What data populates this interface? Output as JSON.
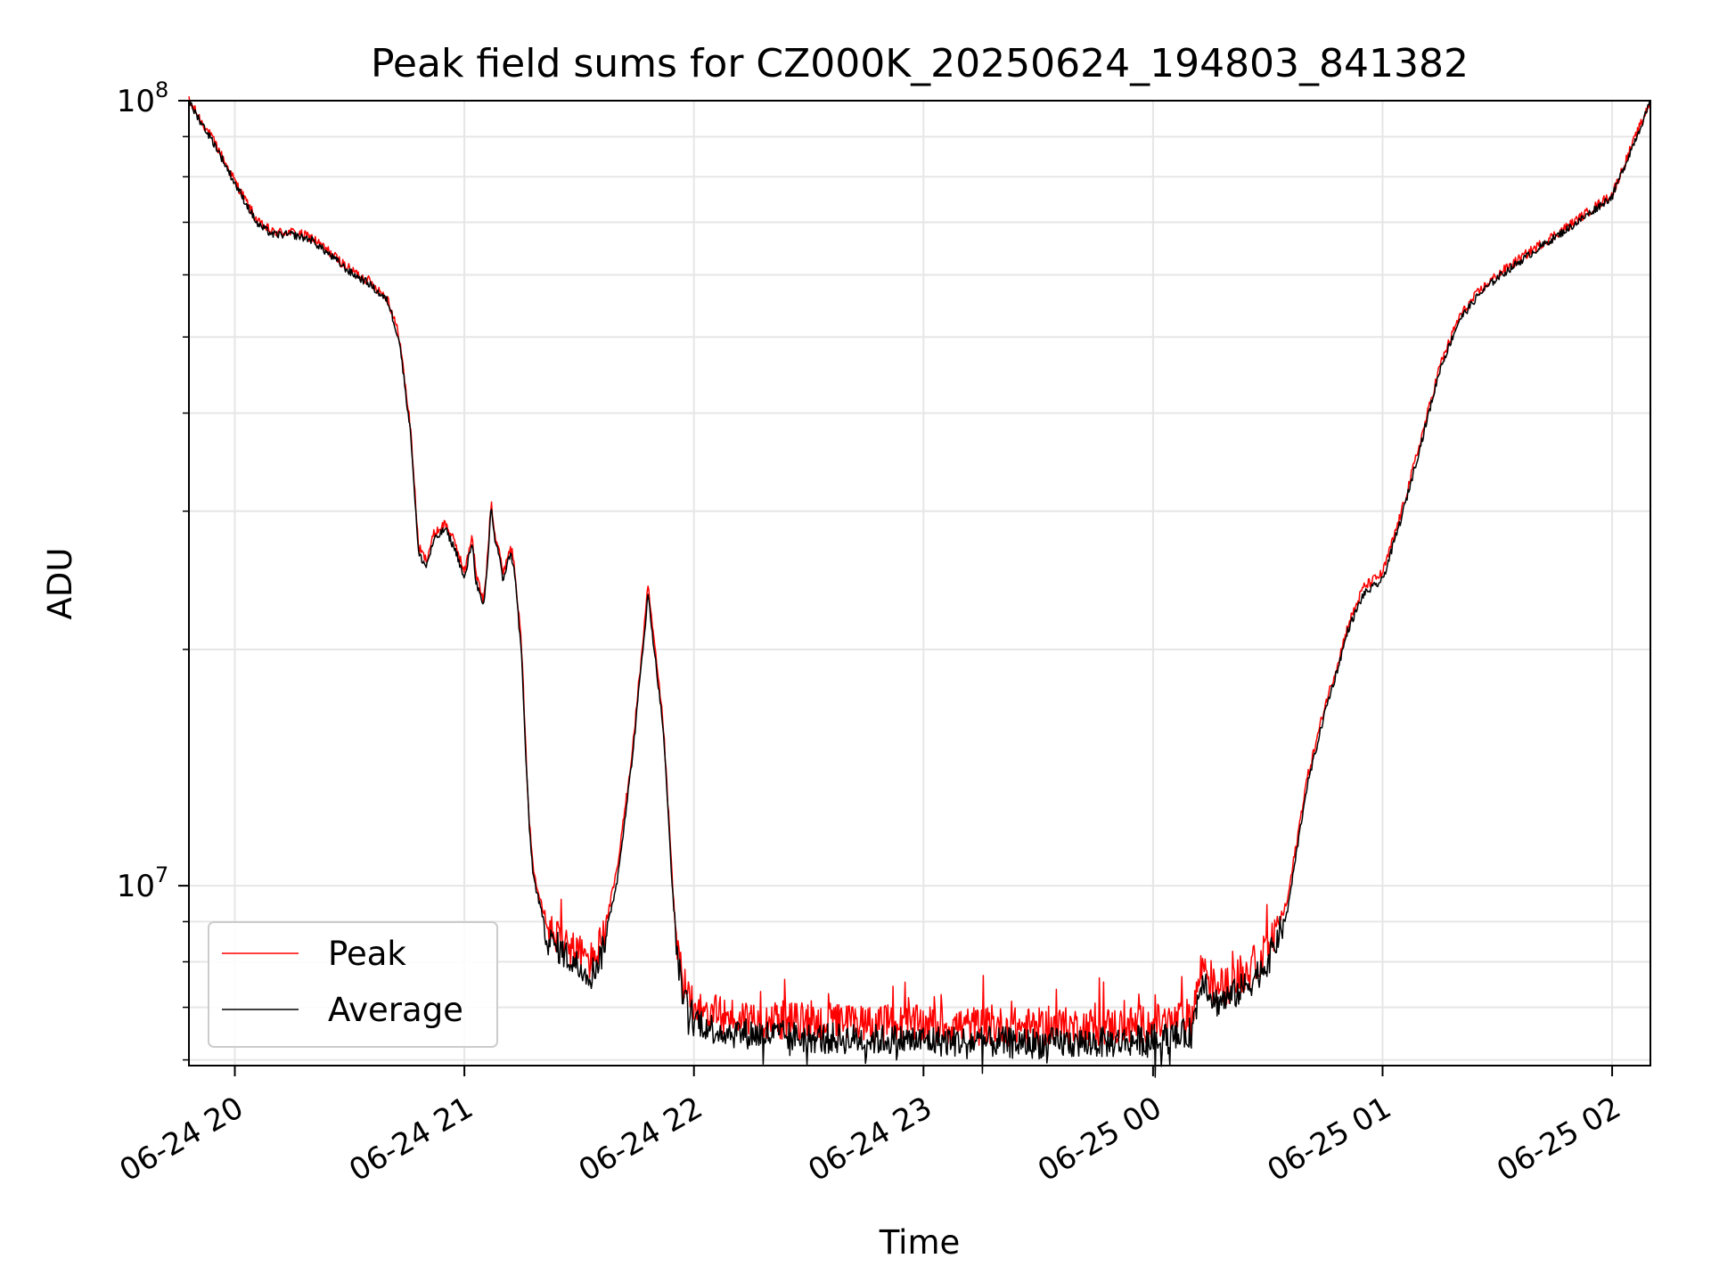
{
  "chart_data": {
    "type": "line",
    "title": "Peak field sums for CZ000K_20250624_194803_841382",
    "xlabel": "Time",
    "ylabel": "ADU",
    "yscale": "log",
    "ylim": [
      5900000.0,
      100000000.0
    ],
    "xlim": [
      "2025-06-24 19:48",
      "2025-06-25 02:10"
    ],
    "grid": true,
    "legend_position": "lower-left",
    "x_ticks": [
      {
        "value": "2025-06-24 20:00",
        "label": "06-24 20"
      },
      {
        "value": "2025-06-24 21:00",
        "label": "06-24 21"
      },
      {
        "value": "2025-06-24 22:00",
        "label": "06-24 22"
      },
      {
        "value": "2025-06-24 23:00",
        "label": "06-24 23"
      },
      {
        "value": "2025-06-25 00:00",
        "label": "06-25 00"
      },
      {
        "value": "2025-06-25 01:00",
        "label": "06-25 01"
      },
      {
        "value": "2025-06-25 02:00",
        "label": "06-25 02"
      }
    ],
    "y_ticks": [
      {
        "value": 10000000,
        "base": "10",
        "exp": "7"
      },
      {
        "value": 100000000,
        "base": "10",
        "exp": "8"
      }
    ],
    "y_minor_ticks": [
      6000000,
      7000000,
      8000000,
      9000000,
      20000000,
      30000000,
      40000000,
      50000000,
      60000000,
      70000000,
      80000000,
      90000000
    ],
    "series": [
      {
        "name": "Peak",
        "color": "#ff0000",
        "noise": 0.05,
        "x": [
          "2025-06-24 19:48",
          "2025-06-24 19:55",
          "2025-06-24 20:00",
          "2025-06-24 20:06",
          "2025-06-24 20:10",
          "2025-06-24 20:15",
          "2025-06-24 20:20",
          "2025-06-24 20:25",
          "2025-06-24 20:30",
          "2025-06-24 20:35",
          "2025-06-24 20:40",
          "2025-06-24 20:43",
          "2025-06-24 20:46",
          "2025-06-24 20:48",
          "2025-06-24 20:50",
          "2025-06-24 20:52",
          "2025-06-24 20:55",
          "2025-06-24 20:58",
          "2025-06-24 21:00",
          "2025-06-24 21:02",
          "2025-06-24 21:03",
          "2025-06-24 21:05",
          "2025-06-24 21:06",
          "2025-06-24 21:07",
          "2025-06-24 21:08",
          "2025-06-24 21:09",
          "2025-06-24 21:10",
          "2025-06-24 21:12",
          "2025-06-24 21:13",
          "2025-06-24 21:15",
          "2025-06-24 21:16",
          "2025-06-24 21:17",
          "2025-06-24 21:18",
          "2025-06-24 21:20",
          "2025-06-24 21:22",
          "2025-06-24 21:25",
          "2025-06-24 21:27",
          "2025-06-24 21:30",
          "2025-06-24 21:33",
          "2025-06-24 21:36",
          "2025-06-24 21:40",
          "2025-06-24 21:44",
          "2025-06-24 21:48",
          "2025-06-24 21:52",
          "2025-06-24 21:55",
          "2025-06-24 21:57",
          "2025-06-24 22:00",
          "2025-06-24 22:02",
          "2025-06-24 22:04",
          "2025-06-24 22:06",
          "2025-06-24 22:10",
          "2025-06-24 22:15",
          "2025-06-24 22:30",
          "2025-06-24 23:00",
          "2025-06-24 23:30",
          "2025-06-24 23:50",
          "2025-06-25 00:05",
          "2025-06-25 00:10",
          "2025-06-25 00:13",
          "2025-06-25 00:16",
          "2025-06-25 00:20",
          "2025-06-25 00:25",
          "2025-06-25 00:30",
          "2025-06-25 00:35",
          "2025-06-25 00:40",
          "2025-06-25 00:45",
          "2025-06-25 00:48",
          "2025-06-25 00:51",
          "2025-06-25 00:55",
          "2025-06-25 01:00",
          "2025-06-25 01:05",
          "2025-06-25 01:10",
          "2025-06-25 01:15",
          "2025-06-25 01:20",
          "2025-06-25 01:25",
          "2025-06-25 01:30",
          "2025-06-25 01:40",
          "2025-06-25 01:50",
          "2025-06-25 02:00",
          "2025-06-25 02:10"
        ],
        "values": [
          100000000,
          88000000,
          79000000,
          70000000,
          68000000,
          68000000,
          67000000,
          64000000,
          61000000,
          59000000,
          56000000,
          50000000,
          38000000,
          27000000,
          26000000,
          28000000,
          29000000,
          27000000,
          25000000,
          28000000,
          25000000,
          23000000,
          26000000,
          31000000,
          28000000,
          27000000,
          25000000,
          27000000,
          26000000,
          20000000,
          15000000,
          12000000,
          10500000,
          9600000,
          8800000,
          8600000,
          8400000,
          8200000,
          8000000,
          8500000,
          10500000,
          15000000,
          24000000,
          16000000,
          9000000,
          7500000,
          7100000,
          7000000,
          6900000,
          6850000,
          6800000,
          6780000,
          6700000,
          6650000,
          6600000,
          6620000,
          6700000,
          6800000,
          8000000,
          7400000,
          7500000,
          7800000,
          8300000,
          9500000,
          13500000,
          17000000,
          19000000,
          21500000,
          24000000,
          25000000,
          30000000,
          37000000,
          46000000,
          53000000,
          57000000,
          60000000,
          65000000,
          70000000,
          76000000,
          100000000
        ]
      },
      {
        "name": "Average",
        "color": "#000000",
        "noise": 0.04,
        "x": [
          "2025-06-24 19:48",
          "2025-06-24 19:55",
          "2025-06-24 20:00",
          "2025-06-24 20:06",
          "2025-06-24 20:10",
          "2025-06-24 20:15",
          "2025-06-24 20:20",
          "2025-06-24 20:25",
          "2025-06-24 20:30",
          "2025-06-24 20:35",
          "2025-06-24 20:40",
          "2025-06-24 20:43",
          "2025-06-24 20:46",
          "2025-06-24 20:48",
          "2025-06-24 20:50",
          "2025-06-24 20:52",
          "2025-06-24 20:55",
          "2025-06-24 20:58",
          "2025-06-24 21:00",
          "2025-06-24 21:02",
          "2025-06-24 21:03",
          "2025-06-24 21:05",
          "2025-06-24 21:06",
          "2025-06-24 21:07",
          "2025-06-24 21:08",
          "2025-06-24 21:09",
          "2025-06-24 21:10",
          "2025-06-24 21:12",
          "2025-06-24 21:13",
          "2025-06-24 21:15",
          "2025-06-24 21:16",
          "2025-06-24 21:17",
          "2025-06-24 21:18",
          "2025-06-24 21:20",
          "2025-06-24 21:22",
          "2025-06-24 21:25",
          "2025-06-24 21:27",
          "2025-06-24 21:30",
          "2025-06-24 21:33",
          "2025-06-24 21:36",
          "2025-06-24 21:40",
          "2025-06-24 21:44",
          "2025-06-24 21:48",
          "2025-06-24 21:52",
          "2025-06-24 21:55",
          "2025-06-24 21:57",
          "2025-06-24 22:00",
          "2025-06-24 22:02",
          "2025-06-24 22:04",
          "2025-06-24 22:06",
          "2025-06-24 22:10",
          "2025-06-24 22:15",
          "2025-06-24 22:30",
          "2025-06-24 23:00",
          "2025-06-24 23:30",
          "2025-06-24 23:50",
          "2025-06-25 00:05",
          "2025-06-25 00:10",
          "2025-06-25 00:13",
          "2025-06-25 00:16",
          "2025-06-25 00:20",
          "2025-06-25 00:25",
          "2025-06-25 00:30",
          "2025-06-25 00:35",
          "2025-06-25 00:40",
          "2025-06-25 00:45",
          "2025-06-25 00:48",
          "2025-06-25 00:51",
          "2025-06-25 00:55",
          "2025-06-25 01:00",
          "2025-06-25 01:05",
          "2025-06-25 01:10",
          "2025-06-25 01:15",
          "2025-06-25 01:20",
          "2025-06-25 01:25",
          "2025-06-25 01:30",
          "2025-06-25 01:40",
          "2025-06-25 01:50",
          "2025-06-25 02:00",
          "2025-06-25 02:10"
        ],
        "values": [
          99500000,
          87500000,
          78500000,
          69500000,
          67500000,
          67500000,
          66500000,
          63500000,
          60500000,
          58500000,
          55500000,
          49500000,
          37500000,
          26500000,
          25500000,
          27500000,
          28500000,
          26500000,
          24500000,
          27500000,
          24500000,
          22500000,
          25500000,
          30500000,
          27500000,
          26500000,
          24500000,
          26500000,
          25500000,
          19500000,
          14800000,
          11800000,
          10300000,
          9300000,
          8500000,
          8300000,
          8100000,
          7900000,
          7700000,
          8200000,
          10200000,
          14700000,
          23500000,
          15800000,
          8800000,
          7200000,
          6800000,
          6700000,
          6600000,
          6550000,
          6500000,
          6480000,
          6400000,
          6350000,
          6300000,
          6320000,
          6400000,
          6500000,
          7700000,
          7100000,
          7200000,
          7500000,
          8000000,
          9200000,
          13200000,
          16700000,
          18700000,
          21200000,
          23500000,
          24500000,
          29500000,
          36500000,
          45500000,
          52500000,
          56500000,
          59500000,
          64500000,
          69500000,
          75500000,
          99500000
        ]
      }
    ]
  }
}
